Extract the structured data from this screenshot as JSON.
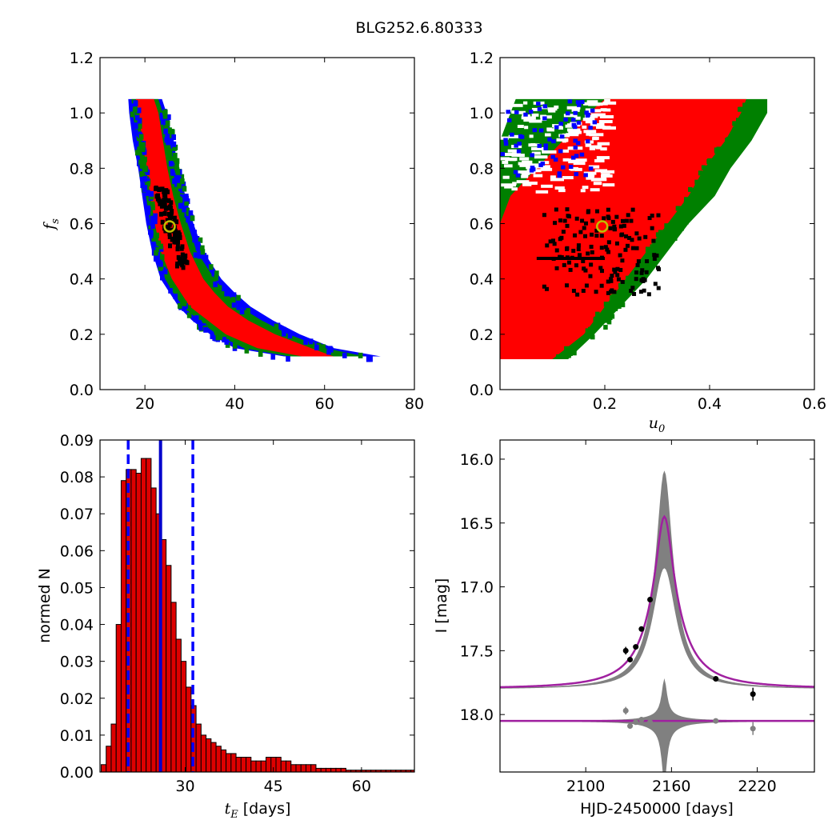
{
  "figure_title": "BLG252.6.80333",
  "colors": {
    "inner_region": "#ff0000",
    "middle_region": "#008000",
    "outer_region": "#0000ff",
    "samples": "#000000",
    "best_fit_marker": "#bfbf00",
    "histogram_bar": "#dd0000",
    "median_line": "#0000cc",
    "interval_line": "#0000ff",
    "model_curve": "#a020a0",
    "model_band": "#808080",
    "data_points": "#000000",
    "residual_points": "#808080"
  },
  "chart_data": [
    {
      "type": "scatter",
      "panel": "top-left",
      "xlabel": "",
      "ylabel": "f_s",
      "ylabel_base": "f",
      "ylabel_sub": "s",
      "xlim": [
        10,
        80
      ],
      "ylim": [
        0.0,
        1.2
      ],
      "xticks": [
        "20",
        "40",
        "60",
        "80"
      ],
      "yticks": [
        "0.0",
        "0.2",
        "0.4",
        "0.6",
        "0.8",
        "1.0",
        "1.2"
      ],
      "grid": false,
      "best_fit": {
        "x": 25.5,
        "y": 0.59
      },
      "region_band": {
        "fs": [
          1.05,
          1.0,
          0.9,
          0.8,
          0.7,
          0.6,
          0.5,
          0.4,
          0.35,
          0.3,
          0.25,
          0.2,
          0.15,
          0.12
        ],
        "red": [
          [
            18,
            22
          ],
          [
            18.5,
            23
          ],
          [
            19.5,
            24
          ],
          [
            20.3,
            25
          ],
          [
            21.2,
            26.3
          ],
          [
            22.2,
            28
          ],
          [
            23.5,
            30
          ],
          [
            26,
            33
          ],
          [
            28,
            35.5
          ],
          [
            30,
            38.5
          ],
          [
            34,
            43
          ],
          [
            38,
            49
          ],
          [
            45,
            57
          ],
          [
            55,
            62
          ]
        ],
        "green": [
          [
            17,
            23
          ],
          [
            17.3,
            24
          ],
          [
            18.2,
            25.5
          ],
          [
            19.3,
            26.5
          ],
          [
            20.2,
            28
          ],
          [
            21.2,
            29.5
          ],
          [
            22.5,
            31.5
          ],
          [
            24.5,
            35.5
          ],
          [
            26.3,
            38
          ],
          [
            28.5,
            41
          ],
          [
            32,
            46
          ],
          [
            36,
            52
          ],
          [
            42,
            60
          ],
          [
            52,
            69
          ]
        ],
        "blue": [
          [
            16.3,
            23.8
          ],
          [
            16.5,
            24.8
          ],
          [
            17.3,
            26.3
          ],
          [
            18.5,
            27.5
          ],
          [
            19.4,
            29
          ],
          [
            20.3,
            30.8
          ],
          [
            21.6,
            33
          ],
          [
            23.5,
            37
          ],
          [
            25.5,
            40
          ],
          [
            27.5,
            43.5
          ],
          [
            30.5,
            48.5
          ],
          [
            34.5,
            54.5
          ],
          [
            40,
            62
          ],
          [
            51,
            72.5
          ]
        ]
      },
      "samples_region": {
        "x": [
          23,
          30
        ],
        "y": [
          0.45,
          0.74
        ]
      }
    },
    {
      "type": "scatter",
      "panel": "top-right",
      "xlabel": "u_0",
      "xlabel_base": "u",
      "xlabel_sub": "0",
      "ylabel": "",
      "xlim": [
        0.0,
        0.6
      ],
      "ylim": [
        0.0,
        1.2
      ],
      "xticks": [
        "0.2",
        "0.4",
        "0.6"
      ],
      "yticks": [
        "0.0",
        "0.2",
        "0.4",
        "0.6",
        "0.8",
        "1.0",
        "1.2"
      ],
      "grid": false,
      "best_fit": {
        "x": 0.195,
        "y": 0.59
      },
      "region_band": {
        "fs": [
          0.11,
          0.2,
          0.3,
          0.4,
          0.5,
          0.6,
          0.7,
          0.8,
          0.9,
          1.0,
          1.05
        ],
        "red": [
          [
            0.0,
            0.1
          ],
          [
            0.0,
            0.16
          ],
          [
            0.0,
            0.2
          ],
          [
            0.0,
            0.24
          ],
          [
            0.0,
            0.28
          ],
          [
            0.0,
            0.32
          ],
          [
            0.02,
            0.36
          ],
          [
            0.07,
            0.39
          ],
          [
            0.12,
            0.43
          ],
          [
            0.17,
            0.46
          ],
          [
            0.2,
            0.47
          ]
        ],
        "green": [
          [
            0.0,
            0.13
          ],
          [
            0.0,
            0.18
          ],
          [
            0.0,
            0.23
          ],
          [
            0.0,
            0.28
          ],
          [
            0.0,
            0.32
          ],
          [
            0.0,
            0.36
          ],
          [
            0.0,
            0.41
          ],
          [
            0.0,
            0.44
          ],
          [
            0.0,
            0.48
          ],
          [
            0.02,
            0.51
          ],
          [
            0.03,
            0.51
          ]
        ]
      },
      "samples_region": {
        "x": [
          0.08,
          0.3
        ],
        "y": [
          0.35,
          0.66
        ]
      }
    },
    {
      "type": "bar",
      "panel": "bottom-left",
      "xlabel": "t_E [days]",
      "xlabel_base": "t",
      "xlabel_sub": "E",
      "xlabel_suffix": " [days]",
      "ylabel": "normed N",
      "xlim": [
        15.5,
        69
      ],
      "ylim": [
        0.0,
        0.09
      ],
      "xticks": [
        "30",
        "45",
        "60"
      ],
      "yticks": [
        "0.00",
        "0.01",
        "0.02",
        "0.03",
        "0.04",
        "0.05",
        "0.06",
        "0.07",
        "0.08",
        "0.09"
      ],
      "grid": false,
      "bin_width": 0.85,
      "bin_start": 15.7,
      "values": [
        0.002,
        0.007,
        0.013,
        0.04,
        0.079,
        0.082,
        0.082,
        0.081,
        0.085,
        0.085,
        0.077,
        0.07,
        0.063,
        0.056,
        0.046,
        0.036,
        0.03,
        0.023,
        0.018,
        0.013,
        0.01,
        0.009,
        0.008,
        0.007,
        0.006,
        0.005,
        0.005,
        0.004,
        0.004,
        0.004,
        0.003,
        0.003,
        0.003,
        0.004,
        0.004,
        0.004,
        0.003,
        0.003,
        0.002,
        0.002,
        0.002,
        0.002,
        0.002,
        0.001,
        0.001,
        0.001,
        0.001,
        0.001,
        0.001,
        0.0005,
        0.0005,
        0.0005,
        0.0005,
        0.0005,
        0.0005,
        0.0005,
        0.0005,
        0.0005,
        0.0005,
        0.0005,
        0.0005,
        0.0005,
        0.0005
      ],
      "median": 25.8,
      "interval": [
        20.3,
        31.3
      ]
    },
    {
      "type": "line",
      "panel": "bottom-right",
      "xlabel": "HJD-2450000 [days]",
      "ylabel": "I [mag]",
      "xlim": [
        2040,
        2260
      ],
      "ylim": [
        18.45,
        15.85
      ],
      "xticks": [
        "2100",
        "2160",
        "2220"
      ],
      "yticks": [
        "16.0",
        "16.5",
        "17.0",
        "17.5",
        "18.0"
      ],
      "grid": false,
      "model": {
        "t0": 2155,
        "base_mag": 17.8,
        "peak_mag": 16.45
      },
      "band_peak_mag": 15.85,
      "residual_baseline": 18.05,
      "data": [
        {
          "x": 2128,
          "y": 17.5,
          "err": 0.03
        },
        {
          "x": 2131,
          "y": 17.57,
          "err": 0.02
        },
        {
          "x": 2135,
          "y": 17.47,
          "err": 0.02
        },
        {
          "x": 2139,
          "y": 17.33,
          "err": 0.02
        },
        {
          "x": 2145,
          "y": 17.1,
          "err": 0.02
        },
        {
          "x": 2191,
          "y": 17.72,
          "err": 0.02
        },
        {
          "x": 2217,
          "y": 17.84,
          "err": 0.05
        }
      ],
      "residuals": [
        {
          "x": 2128,
          "y": 17.97,
          "err": 0.03
        },
        {
          "x": 2131,
          "y": 18.09,
          "err": 0.02
        },
        {
          "x": 2135,
          "y": 18.06,
          "err": 0.02
        },
        {
          "x": 2139,
          "y": 18.04,
          "err": 0.02
        },
        {
          "x": 2145,
          "y": 18.06,
          "err": 0.02
        },
        {
          "x": 2191,
          "y": 18.05,
          "err": 0.02
        },
        {
          "x": 2217,
          "y": 18.11,
          "err": 0.05
        }
      ]
    }
  ]
}
